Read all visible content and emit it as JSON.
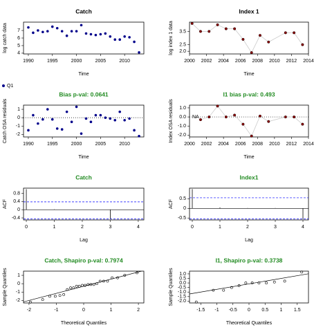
{
  "legend_label": "Q1",
  "legend_color": "#00008b",
  "chart_data": [
    {
      "type": "scatter",
      "title": "Catch",
      "title_color": "#000000",
      "xlabel": "Time",
      "ylabel": "log catch data",
      "color": "#00008b",
      "connect": false,
      "x": [
        1990,
        1991,
        1992,
        1993,
        1994,
        1995,
        1996,
        1997,
        1998,
        1999,
        2000,
        2001,
        2002,
        2003,
        2004,
        2005,
        2006,
        2007,
        2008,
        2009,
        2010,
        2011,
        2012,
        2013
      ],
      "values": [
        7.4,
        6.7,
        7.0,
        6.8,
        6.9,
        7.5,
        7.3,
        6.9,
        6.3,
        6.9,
        6.9,
        7.7,
        6.6,
        6.5,
        6.4,
        6.5,
        6.6,
        6.2,
        5.8,
        5.8,
        6.2,
        6.1,
        5.5,
        4.1
      ],
      "xlim": [
        1989,
        2014
      ],
      "ylim": [
        3.9,
        8.1
      ],
      "xticks": [
        1990,
        1995,
        2000,
        2005,
        2010
      ],
      "yticks": [
        4,
        5,
        6,
        7
      ]
    },
    {
      "type": "scatter",
      "title": "Index 1",
      "title_color": "#000000",
      "xlabel": "Time",
      "ylabel": "log index 1 data",
      "color": "#8b0000",
      "connect": true,
      "x": [
        2000.3,
        2001.3,
        2002.3,
        2003.3,
        2004.3,
        2005.3,
        2006.3,
        2007.3,
        2008.3,
        2009.3,
        2011.3,
        2012.3,
        2013.3
      ],
      "values": [
        4.1,
        3.5,
        3.5,
        4.0,
        3.7,
        3.7,
        2.9,
        1.9,
        3.2,
        2.7,
        3.4,
        3.4,
        2.5
      ],
      "xlim": [
        2000,
        2014
      ],
      "ylim": [
        1.8,
        4.2
      ],
      "xticks": [
        2000,
        2002,
        2004,
        2006,
        2008,
        2010,
        2012,
        2014
      ],
      "yticks": [
        {
          "value": 2,
          "label": "2.0"
        },
        {
          "value": 2.5,
          "label": "2.5"
        },
        {
          "value": 3.5,
          "label": "3.5"
        }
      ]
    },
    {
      "type": "scatter",
      "title": "Bias p-val: 0.0641",
      "title_color": "#228b22",
      "xlabel": "Time",
      "ylabel": "Catch OSA residuals",
      "color": "#00008b",
      "connect": false,
      "zero_line": true,
      "x": [
        1990,
        1991,
        1992,
        1993,
        1994,
        1995,
        1996,
        1997,
        1998,
        1999,
        2000,
        2001,
        2002,
        2003,
        2004,
        2005,
        2006,
        2007,
        2008,
        2009,
        2010,
        2011,
        2012,
        2013
      ],
      "values": [
        -1.5,
        0.3,
        -0.7,
        -0.2,
        1.0,
        -0.2,
        -1.3,
        -1.4,
        0.7,
        -0.5,
        1.3,
        -1.9,
        -0.1,
        -0.5,
        0.3,
        0.3,
        0.0,
        -0.1,
        -0.3,
        0.7,
        -0.3,
        -0.1,
        -1.5,
        -2.2
      ],
      "xlim": [
        1989,
        2014
      ],
      "ylim": [
        -2.3,
        1.5
      ],
      "xticks": [
        1990,
        1995,
        2000,
        2005,
        2010
      ],
      "yticks": [
        -2,
        -1,
        0,
        1
      ]
    },
    {
      "type": "scatter",
      "title": "I1 bias p-val: 0.493",
      "title_color": "#228b22",
      "xlabel": "Time",
      "ylabel": "Index OSA residuals",
      "color": "#8b0000",
      "connect": true,
      "zero_line": true,
      "na_label": "NA",
      "x": [
        2000.3,
        2001.3,
        2002.3,
        2003.3,
        2004.3,
        2005.3,
        2006.3,
        2007.3,
        2008.3,
        2009.3,
        2011.3,
        2012.3,
        2013.3
      ],
      "values": [
        null,
        -0.3,
        0.0,
        1.2,
        0.0,
        0.2,
        -0.8,
        -2.1,
        0.1,
        -0.5,
        0.0,
        0.0,
        -0.8
      ],
      "xlim": [
        2000,
        2014
      ],
      "ylim": [
        -2.2,
        1.3
      ],
      "xticks": [
        2000,
        2002,
        2004,
        2006,
        2008,
        2010,
        2012,
        2014
      ],
      "yticks": [
        {
          "value": -2,
          "label": "-2.0"
        },
        {
          "value": -1,
          "label": "-1.0"
        },
        {
          "value": 0,
          "label": "0.0"
        },
        {
          "value": 1,
          "label": "1.0"
        }
      ]
    },
    {
      "type": "acf",
      "title": "Catch",
      "title_color": "#228b22",
      "xlabel": "Lag",
      "ylabel": "ACF",
      "color": "#000000",
      "x": [
        0,
        1,
        2,
        3,
        4
      ],
      "values": [
        1.0,
        0.02,
        0.0,
        -0.45,
        0.01
      ],
      "conf_bounds": [
        0.38,
        -0.45
      ],
      "xlim": [
        -0.1,
        4.2
      ],
      "ylim": [
        -0.5,
        1.05
      ],
      "xticks": [
        0,
        1,
        2,
        3,
        4
      ],
      "yticks": [
        -0.4,
        0,
        0.4,
        0.8
      ]
    },
    {
      "type": "acf",
      "title": "Index1",
      "title_color": "#228b22",
      "xlabel": "Lag",
      "ylabel": "ACF",
      "color": "#000000",
      "x": [
        0,
        1,
        2,
        3,
        4
      ],
      "values": [
        1.0,
        0.05,
        0.02,
        0.02,
        -0.55
      ],
      "conf_bounds": [
        0.55,
        -0.55
      ],
      "xlim": [
        -0.1,
        4.2
      ],
      "ylim": [
        -0.6,
        1.05
      ],
      "xticks": [
        0,
        1,
        2,
        3,
        4
      ],
      "yticks": [
        -0.5,
        0,
        0.5
      ]
    },
    {
      "type": "qq",
      "title": "Catch, Shapiro p-val: 0.7974",
      "title_color": "#228b22",
      "xlabel": "Theoretical Quantiles",
      "ylabel": "Sample Quantiles",
      "color": "#000000",
      "x": [
        -1.95,
        -1.5,
        -1.24,
        -1.04,
        -0.87,
        -0.73,
        -0.6,
        -0.48,
        -0.37,
        -0.26,
        -0.16,
        -0.05,
        0.05,
        0.16,
        0.26,
        0.37,
        0.48,
        0.6,
        0.73,
        0.87,
        1.04,
        1.24,
        1.5,
        1.95
      ],
      "values": [
        -2.2,
        -1.9,
        -1.5,
        -1.5,
        -1.4,
        -1.3,
        -0.7,
        -0.5,
        -0.5,
        -0.3,
        -0.3,
        -0.2,
        -0.2,
        -0.1,
        -0.1,
        -0.1,
        0.0,
        0.3,
        0.3,
        0.3,
        0.7,
        0.7,
        1.0,
        1.3
      ],
      "qqline": {
        "intercept": -0.3,
        "slope": 0.85
      },
      "xlim": [
        -2.2,
        2.2
      ],
      "ylim": [
        -2.3,
        1.5
      ],
      "xticks": [
        -2,
        -1,
        0,
        1,
        2
      ],
      "yticks": [
        -2,
        -1,
        0,
        1
      ]
    },
    {
      "type": "qq",
      "title": "I1, Shapiro p-val: 0.3738",
      "title_color": "#228b22",
      "xlabel": "Theoretical Quantiles",
      "ylabel": "Sample Quantiles",
      "color": "#000000",
      "x": [
        -1.64,
        -1.11,
        -0.79,
        -0.54,
        -0.31,
        -0.1,
        0.1,
        0.31,
        0.54,
        0.79,
        1.11,
        1.64
      ],
      "values": [
        -2.1,
        -0.8,
        -0.8,
        -0.5,
        -0.3,
        0.0,
        0.0,
        0.0,
        0.0,
        0.1,
        0.2,
        1.2
      ],
      "qqline": {
        "intercept": -0.1,
        "slope": 0.6
      },
      "xlim": [
        -1.85,
        1.85
      ],
      "ylim": [
        -2.2,
        1.3
      ],
      "xticks": [
        -1.5,
        -1,
        -0.5,
        0,
        0.5,
        1,
        1.5
      ],
      "yticks": [
        {
          "value": -2,
          "label": "-2.0"
        },
        {
          "value": -1.5,
          "label": "-1.5"
        },
        {
          "value": -1,
          "label": "-1.0"
        },
        {
          "value": -0.5,
          "label": "-0.5"
        },
        {
          "value": 0,
          "label": "0.0"
        },
        {
          "value": 0.5,
          "label": "0.5"
        },
        {
          "value": 1,
          "label": "1.0"
        }
      ]
    }
  ]
}
